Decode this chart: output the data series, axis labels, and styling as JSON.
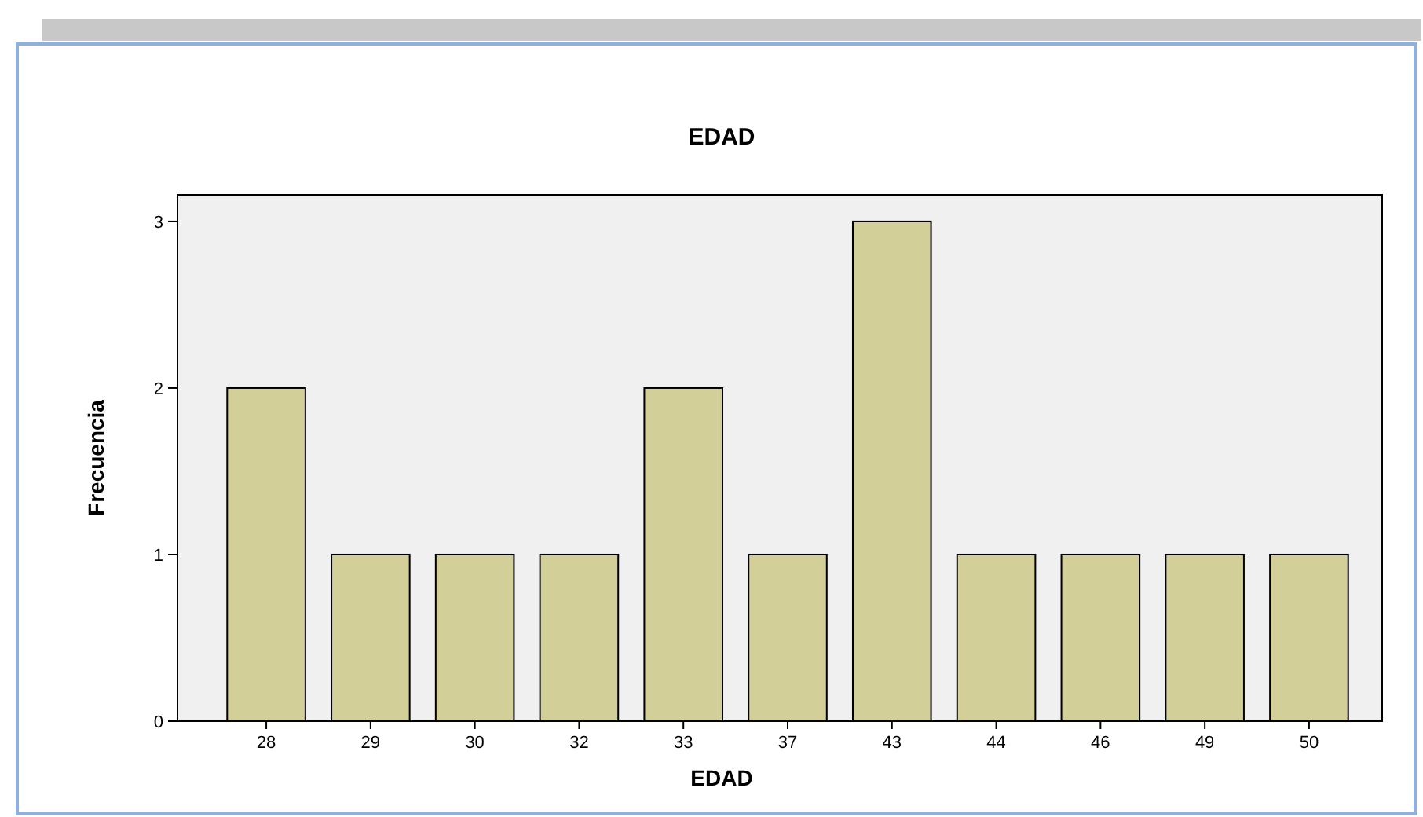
{
  "chart_data": {
    "type": "bar",
    "title": "EDAD",
    "xlabel": "EDAD",
    "ylabel": "Frecuencia",
    "categories": [
      "28",
      "29",
      "30",
      "32",
      "33",
      "37",
      "43",
      "44",
      "46",
      "49",
      "50"
    ],
    "values": [
      2,
      1,
      1,
      1,
      2,
      1,
      3,
      1,
      1,
      1,
      1
    ],
    "color": "#d3cf98",
    "ylim": [
      0,
      3.16
    ],
    "yticks": [
      0,
      1,
      2,
      3
    ],
    "grid": false
  }
}
